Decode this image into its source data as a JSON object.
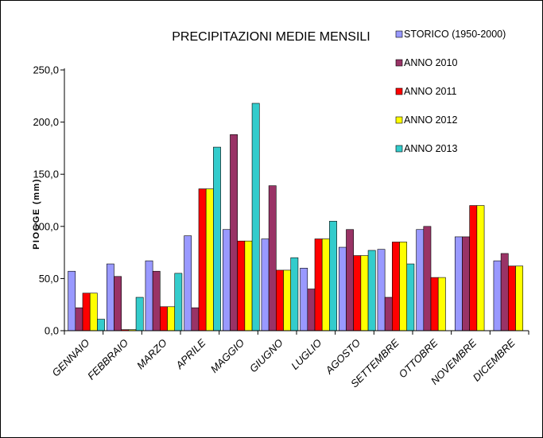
{
  "chart_data": {
    "type": "bar",
    "title": "PRECIPITAZIONI MEDIE MENSILI",
    "xlabel": "",
    "ylabel": "PIOGGE (mm)",
    "ylim": [
      0,
      250
    ],
    "yticks": [
      "0,0",
      "50,0",
      "100,0",
      "150,0",
      "200,0",
      "250,0"
    ],
    "grid": false,
    "legend_position": "top-right",
    "categories": [
      "GENNAIO",
      "FEBBRAIO",
      "MARZO",
      "APRILE",
      "MAGGIO",
      "GIUGNO",
      "LUGLIO",
      "AGOSTO",
      "SETTEMBRE",
      "OTTOBRE",
      "NOVEMBRE",
      "DICEMBRE"
    ],
    "series": [
      {
        "name": "STORICO (1950-2000)",
        "color": "#9999ff",
        "values": [
          57,
          64,
          67,
          91,
          97,
          88,
          60,
          80,
          78,
          97,
          90,
          67
        ]
      },
      {
        "name": "ANNO 2010",
        "color": "#993366",
        "values": [
          22,
          52,
          57,
          22,
          188,
          139,
          40,
          97,
          32,
          100,
          90,
          74
        ]
      },
      {
        "name": "ANNO 2011",
        "color": "#ff0000",
        "values": [
          36,
          1,
          23,
          136,
          86,
          58,
          88,
          72,
          85,
          51,
          120,
          62
        ]
      },
      {
        "name": "ANNO 2012",
        "color": "#ffff00",
        "values": [
          36,
          1,
          23,
          136,
          86,
          58,
          88,
          72,
          85,
          51,
          120,
          62
        ]
      },
      {
        "name": "ANNO 2013",
        "color": "#33cccc",
        "values": [
          11,
          32,
          55,
          176,
          218,
          70,
          105,
          77,
          64,
          null,
          null,
          null
        ]
      }
    ]
  }
}
